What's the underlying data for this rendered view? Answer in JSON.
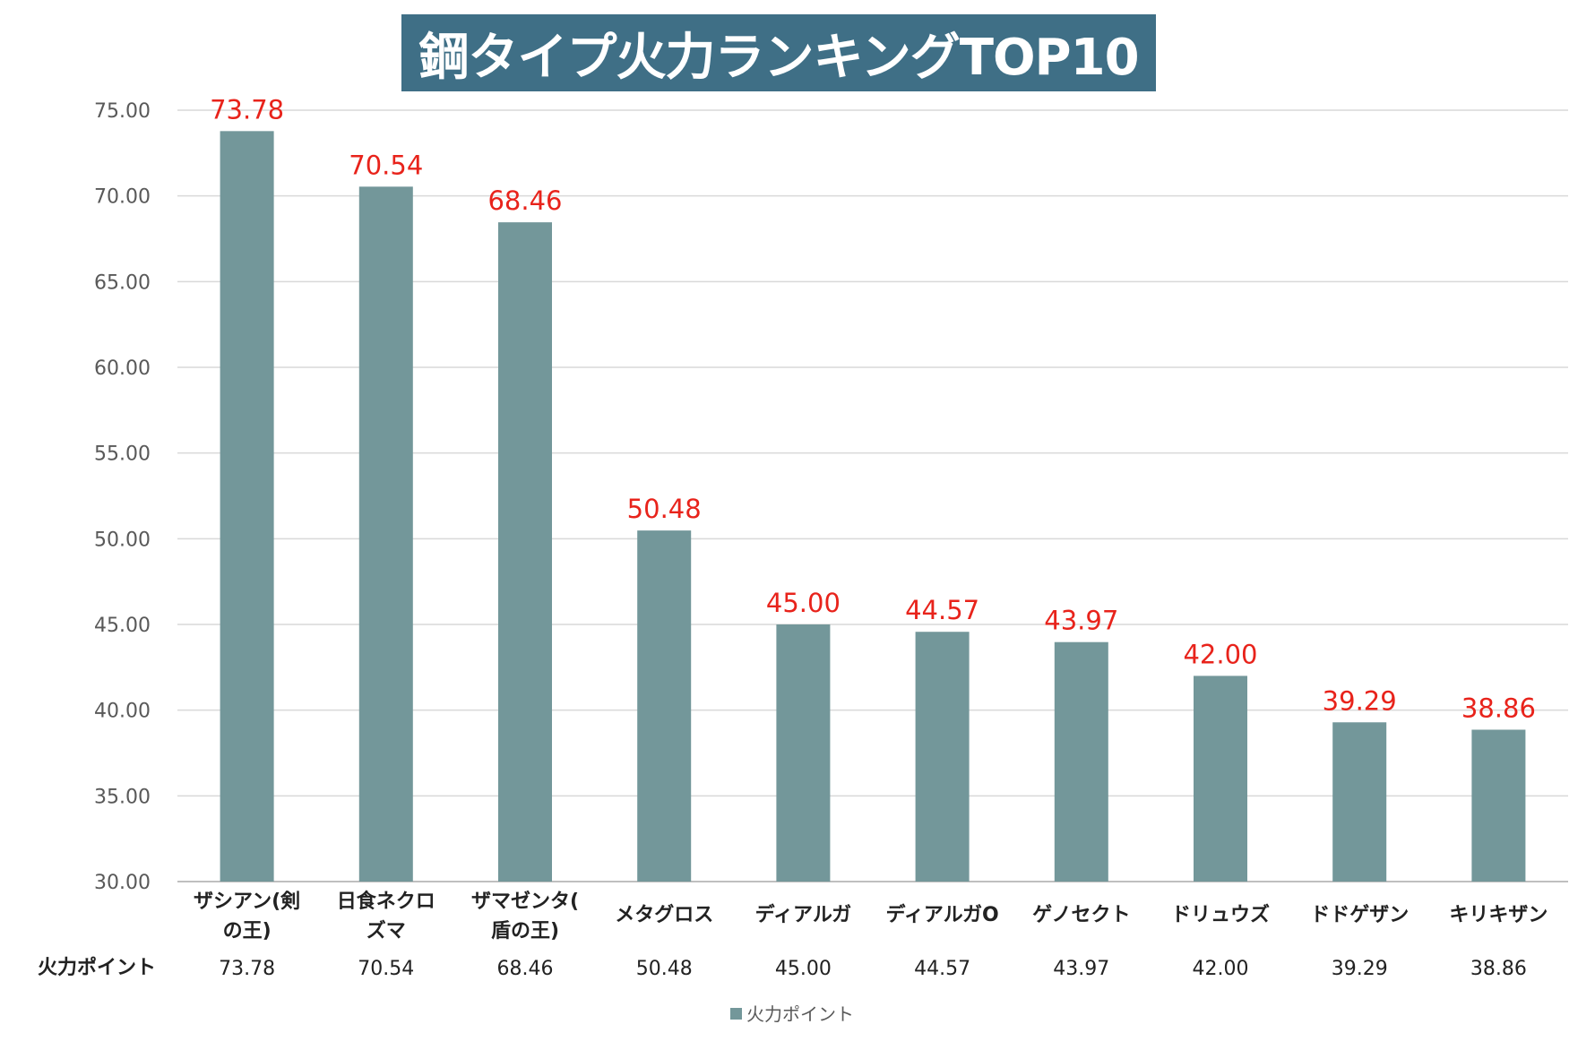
{
  "colors": {
    "bar": "#73979a",
    "data_label": "#e8231b",
    "title_bg": "#3f6f86",
    "title_text": "#ffffff",
    "grid": "#d9d9d9",
    "axis_text": "#595959"
  },
  "chart_data": {
    "type": "bar",
    "title": "鋼タイプ火力ランキングTOP10",
    "categories": [
      [
        "ザシアン(剣",
        "の王)"
      ],
      [
        "日食ネクロ",
        "ズマ"
      ],
      [
        "ザマゼンタ(",
        "盾の王)"
      ],
      [
        "メタグロス"
      ],
      [
        "ディアルガ"
      ],
      [
        "ディアルガO"
      ],
      [
        "ゲノセクト"
      ],
      [
        "ドリュウズ"
      ],
      [
        "ドドゲザン"
      ],
      [
        "キリキザン"
      ]
    ],
    "series": [
      {
        "name": "火力ポイント",
        "values": [
          73.78,
          70.54,
          68.46,
          50.48,
          45.0,
          44.57,
          43.97,
          42.0,
          39.29,
          38.86
        ],
        "value_labels": [
          "73.78",
          "70.54",
          "68.46",
          "50.48",
          "45.00",
          "44.57",
          "43.97",
          "42.00",
          "39.29",
          "38.86"
        ]
      }
    ],
    "ylim": [
      30,
      75
    ],
    "yticks": [
      "30.00",
      "35.00",
      "40.00",
      "45.00",
      "50.00",
      "55.00",
      "60.00",
      "65.00",
      "70.00",
      "75.00"
    ],
    "grid": true,
    "data_table": true,
    "legend": "bottom-center"
  }
}
